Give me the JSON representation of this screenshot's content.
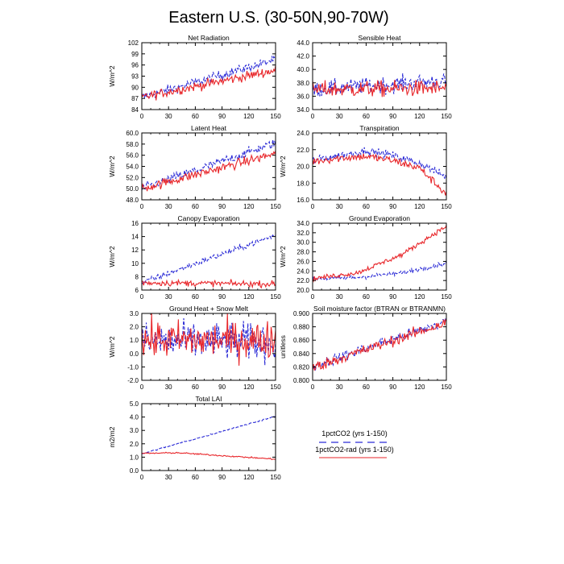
{
  "figure": {
    "title": "Eastern U.S. (30-50N,90-70W)",
    "legend": [
      {
        "label": "1pctCO2 (yrs 1-150)",
        "color": "#2b2bd6",
        "dash": "dashed"
      },
      {
        "label": "1pctCO2-rad (yrs 1-150)",
        "color": "#e8262a",
        "dash": "solid"
      }
    ]
  },
  "chart_data": [
    {
      "type": "line",
      "title": "Net Radiation",
      "ylabel": "W/m^2",
      "xlim": [
        0,
        150
      ],
      "ylim": [
        84,
        102
      ],
      "xticks": [
        "0",
        "30",
        "60",
        "90",
        "120",
        "150"
      ],
      "yticks": [
        "84",
        "87",
        "90",
        "93",
        "96",
        "99",
        "102"
      ],
      "series": [
        {
          "name": "1pctCO2 (yrs 1-150)",
          "x": [
            0,
            150
          ],
          "values": [
            87.3,
            97.4
          ]
        },
        {
          "name": "1pctCO2-rad (yrs 1-150)",
          "x": [
            0,
            150
          ],
          "values": [
            87.3,
            94.6
          ]
        }
      ]
    },
    {
      "type": "line",
      "title": "Sensible Heat",
      "ylabel": "",
      "xlim": [
        0,
        150
      ],
      "ylim": [
        34,
        44
      ],
      "xticks": [
        "0",
        "30",
        "60",
        "90",
        "120",
        "150"
      ],
      "yticks": [
        "34.0",
        "36.0",
        "38.0",
        "40.0",
        "42.0",
        "44.0"
      ],
      "series": [
        {
          "name": "1pctCO2 (yrs 1-150)",
          "x": [
            0,
            150
          ],
          "values": [
            37.0,
            38.3
          ]
        },
        {
          "name": "1pctCO2-rad (yrs 1-150)",
          "x": [
            0,
            150
          ],
          "values": [
            37.0,
            37.2
          ]
        }
      ]
    },
    {
      "type": "line",
      "title": "Latent Heat",
      "ylabel": "W/m^2",
      "xlim": [
        0,
        150
      ],
      "ylim": [
        48,
        60
      ],
      "xticks": [
        "0",
        "30",
        "60",
        "90",
        "120",
        "150"
      ],
      "yticks": [
        "48.0",
        "50.0",
        "52.0",
        "54.0",
        "56.0",
        "58.0",
        "60.0"
      ],
      "series": [
        {
          "name": "1pctCO2 (yrs 1-150)",
          "x": [
            0,
            150
          ],
          "values": [
            50.0,
            58.2
          ]
        },
        {
          "name": "1pctCO2-rad (yrs 1-150)",
          "x": [
            0,
            150
          ],
          "values": [
            50.0,
            56.3
          ]
        }
      ]
    },
    {
      "type": "line",
      "title": "Transpiration",
      "ylabel": "W/m^2",
      "xlim": [
        0,
        150
      ],
      "ylim": [
        16,
        24
      ],
      "xticks": [
        "0",
        "30",
        "60",
        "90",
        "120",
        "150"
      ],
      "yticks": [
        "16.0",
        "18.0",
        "20.0",
        "22.0",
        "24.0"
      ],
      "series": [
        {
          "name": "1pctCO2 (yrs 1-150)",
          "x": [
            0,
            30,
            60,
            90,
            120,
            150
          ],
          "values": [
            20.7,
            21.3,
            21.9,
            21.3,
            20.4,
            18.7
          ]
        },
        {
          "name": "1pctCO2-rad (yrs 1-150)",
          "x": [
            0,
            30,
            60,
            90,
            120,
            150
          ],
          "values": [
            20.6,
            21.0,
            21.2,
            20.7,
            19.8,
            16.7
          ]
        }
      ]
    },
    {
      "type": "line",
      "title": "Canopy Evaporation",
      "ylabel": "W/m^2",
      "xlim": [
        0,
        150
      ],
      "ylim": [
        6,
        16
      ],
      "xticks": [
        "0",
        "30",
        "60",
        "90",
        "120",
        "150"
      ],
      "yticks": [
        "6",
        "8",
        "10",
        "12",
        "14",
        "16"
      ],
      "series": [
        {
          "name": "1pctCO2 (yrs 1-150)",
          "x": [
            0,
            150
          ],
          "values": [
            7.1,
            14.2
          ]
        },
        {
          "name": "1pctCO2-rad (yrs 1-150)",
          "x": [
            0,
            150
          ],
          "values": [
            7.1,
            6.9
          ]
        }
      ]
    },
    {
      "type": "line",
      "title": "Ground Evaporation",
      "ylabel": "W/m^2",
      "xlim": [
        0,
        150
      ],
      "ylim": [
        20,
        34
      ],
      "xticks": [
        "0",
        "30",
        "60",
        "90",
        "120",
        "150"
      ],
      "yticks": [
        "20.0",
        "22.0",
        "24.0",
        "26.0",
        "28.0",
        "30.0",
        "32.0",
        "34.0"
      ],
      "series": [
        {
          "name": "1pctCO2 (yrs 1-150)",
          "x": [
            0,
            50,
            100,
            150
          ],
          "values": [
            22.4,
            22.6,
            23.6,
            25.6
          ]
        },
        {
          "name": "1pctCO2-rad (yrs 1-150)",
          "x": [
            0,
            50,
            100,
            150
          ],
          "values": [
            22.4,
            23.6,
            27.4,
            33.4
          ]
        }
      ]
    },
    {
      "type": "line",
      "title": "Ground Heat + Snow Melt",
      "ylabel": "W/m^2",
      "xlim": [
        0,
        150
      ],
      "ylim": [
        -2,
        3
      ],
      "xticks": [
        "0",
        "30",
        "60",
        "90",
        "120",
        "150"
      ],
      "yticks": [
        "-2.0",
        "-1.0",
        "0.0",
        "1.0",
        "2.0",
        "3.0"
      ],
      "series": [
        {
          "name": "1pctCO2 (yrs 1-150)",
          "x": [
            0,
            150
          ],
          "values": [
            0.9,
            0.9
          ]
        },
        {
          "name": "1pctCO2-rad (yrs 1-150)",
          "x": [
            0,
            150
          ],
          "values": [
            1.0,
            1.0
          ]
        }
      ]
    },
    {
      "type": "line",
      "title": "Soil moisture factor (BTRAN or BTRANMN)",
      "ylabel": "unitless",
      "xlim": [
        0,
        150
      ],
      "ylim": [
        0.8,
        0.9
      ],
      "xticks": [
        "0",
        "30",
        "60",
        "90",
        "120",
        "150"
      ],
      "yticks": [
        "0.800",
        "0.820",
        "0.840",
        "0.860",
        "0.880",
        "0.900"
      ],
      "series": [
        {
          "name": "1pctCO2 (yrs 1-150)",
          "x": [
            0,
            150
          ],
          "values": [
            0.821,
            0.888
          ]
        },
        {
          "name": "1pctCO2-rad (yrs 1-150)",
          "x": [
            0,
            150
          ],
          "values": [
            0.819,
            0.886
          ]
        }
      ]
    },
    {
      "type": "line",
      "title": "Total LAI",
      "ylabel": "m2/m2",
      "xlim": [
        0,
        150
      ],
      "ylim": [
        0,
        5
      ],
      "xticks": [
        "0",
        "30",
        "60",
        "90",
        "120",
        "150"
      ],
      "yticks": [
        "0.0",
        "1.0",
        "2.0",
        "3.0",
        "4.0",
        "5.0"
      ],
      "series": [
        {
          "name": "1pctCO2 (yrs 1-150)",
          "x": [
            0,
            150
          ],
          "values": [
            1.25,
            4.05
          ]
        },
        {
          "name": "1pctCO2-rad (yrs 1-150)",
          "x": [
            0,
            40,
            150
          ],
          "values": [
            1.28,
            1.33,
            0.85
          ]
        }
      ]
    }
  ]
}
